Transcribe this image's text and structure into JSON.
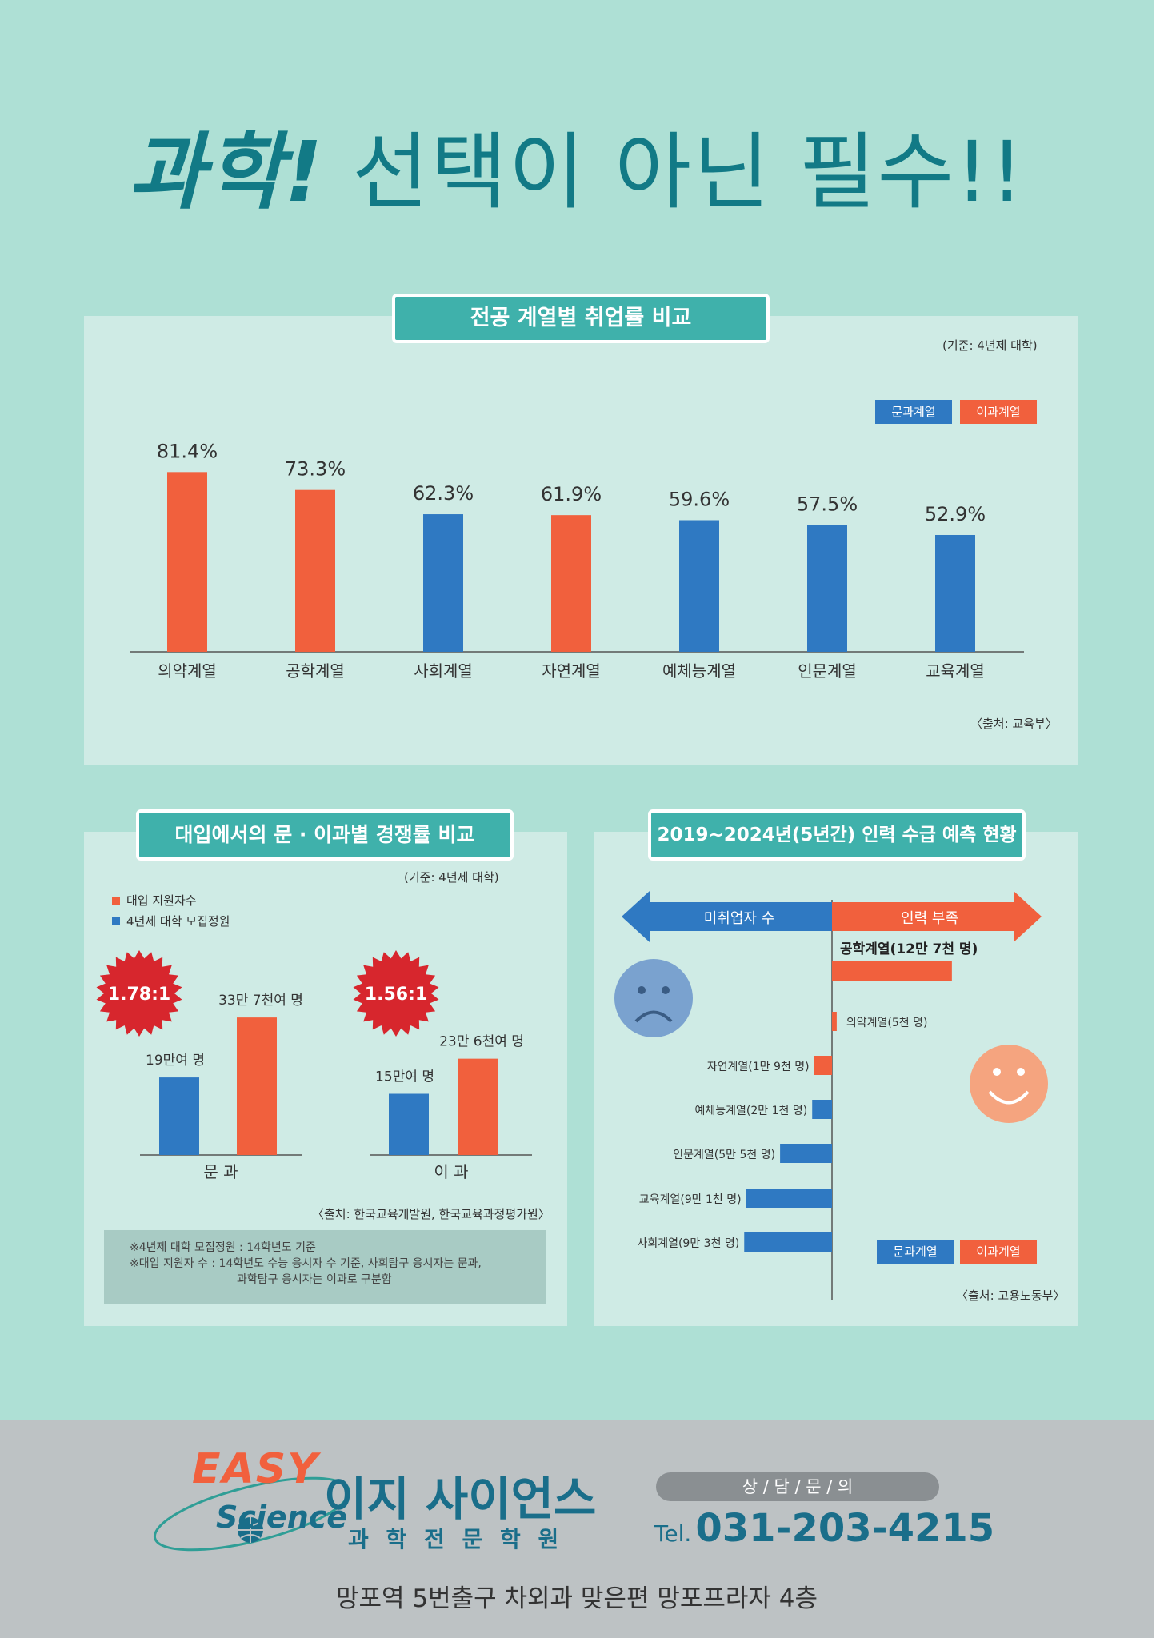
{
  "headline": {
    "bold": "과학!",
    "rest": "선택이 아닌 필수!!"
  },
  "colors": {
    "humanities": "#2f79c2",
    "science": "#f1603d",
    "teal": "#3fb1ab",
    "title": "#127a86"
  },
  "legend": {
    "humanities": "문과계열",
    "science": "이과계열"
  },
  "panel1": {
    "tag": "전공 계열별 취업률 비교",
    "basis": "(기준: 4년제 대학)",
    "source": "〈출처: 교육부〉"
  },
  "panel2": {
    "tag": "대입에서의 문 · 이과별 경쟁률 비교",
    "basis": "(기준: 4년제 대학)",
    "legend_applicants": "대입 지원자수",
    "legend_quota": "4년제 대학 모집정원",
    "source": "〈출처: 한국교육개발원, 한국교육과정평가원〉",
    "note1": "※4년제 대학 모집정원 : 14학년도 기준",
    "note2": "※대입 지원자 수 : 14학년도 수능 응시자 수 기준, 사회탐구 응시자는 문과,",
    "note3": "과학탐구 응시자는 이과로 구분함"
  },
  "panel3": {
    "tag": "2019~2024년(5년간) 인력 수급 예측 현황",
    "arrow_left": "미취업자 수",
    "arrow_right": "인력 부족",
    "source": "〈출처: 고용노동부〉"
  },
  "footer": {
    "logo_easy": "EASY",
    "logo_science": "Science",
    "brand": "이지 사이언스",
    "sub": "과 학 전 문 학 원",
    "consult": "상 / 담 / 문 / 의",
    "tel_prefix": "Tel.",
    "tel": "031-203-4215",
    "address": "망포역 5번출구 차외과 맞은편 망포프라자 4층"
  },
  "chart_data": [
    {
      "type": "bar",
      "categories": [
        "의약계열",
        "공학계열",
        "사회계열",
        "자연계열",
        "예체능계열",
        "인문계열",
        "교육계열"
      ],
      "values": [
        81.4,
        73.3,
        62.3,
        61.9,
        59.6,
        57.5,
        52.9
      ],
      "labels": [
        "81.4%",
        "73.3%",
        "62.3%",
        "61.9%",
        "59.6%",
        "57.5%",
        "52.9%"
      ],
      "group": [
        "science",
        "science",
        "humanities",
        "science",
        "humanities",
        "humanities",
        "humanities"
      ],
      "legend": "top-right"
    },
    {
      "type": "bar",
      "groups": [
        {
          "category": "문 과",
          "ratio": "1.78:1",
          "bars": [
            {
              "series": "quota",
              "value": 19,
              "label": "19만여 명"
            },
            {
              "series": "applicants",
              "value": 33.7,
              "label": "33만 7천여 명"
            }
          ]
        },
        {
          "category": "이 과",
          "ratio": "1.56:1",
          "bars": [
            {
              "series": "quota",
              "value": 15,
              "label": "15만여 명"
            },
            {
              "series": "applicants",
              "value": 23.6,
              "label": "23만 6천여 명"
            }
          ]
        }
      ]
    },
    {
      "type": "bar",
      "orientation": "horizontal",
      "items": [
        {
          "label": "공학계열(12만 7천 명)",
          "value": 127000,
          "group": "science"
        },
        {
          "label": "의약계열(5천 명)",
          "value": 5000,
          "group": "science"
        },
        {
          "label": "자연계열(1만 9천 명)",
          "value": -19000,
          "group": "science"
        },
        {
          "label": "예체능계열(2만 1천 명)",
          "value": -21000,
          "group": "humanities"
        },
        {
          "label": "인문계열(5만 5천 명)",
          "value": -55000,
          "group": "humanities"
        },
        {
          "label": "교육계열(9만 1천 명)",
          "value": -91000,
          "group": "humanities"
        },
        {
          "label": "사회계열(9만 3천 명)",
          "value": -93000,
          "group": "humanities"
        }
      ]
    }
  ]
}
